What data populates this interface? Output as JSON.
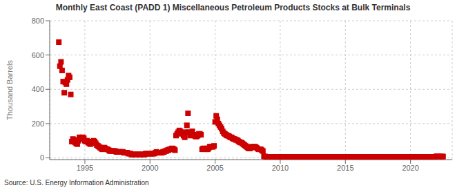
{
  "chart_data": {
    "type": "scatter",
    "title": "Monthly East Coast (PADD 1) Miscellaneous Petroleum Products Stocks at Bulk Terminals",
    "ylabel": "Thousand Barrels",
    "annotations": [
      "Source: U.S. Energy Information Administration"
    ],
    "color": "#CC0000",
    "marker": "square",
    "grid": true,
    "xlim": [
      1992.3,
      2023.2
    ],
    "ylim": [
      -10,
      800
    ],
    "xticks": [
      1995,
      2000,
      2005,
      2010,
      2015,
      2020
    ],
    "yticks": [
      0,
      200,
      400,
      600,
      800
    ],
    "x": [
      1993.0,
      1993.083,
      1993.167,
      1993.25,
      1993.333,
      1993.417,
      1993.5,
      1993.583,
      1993.667,
      1993.75,
      1993.833,
      1993.917,
      1994.0,
      1994.083,
      1994.167,
      1994.25,
      1994.333,
      1994.417,
      1994.5,
      1994.583,
      1994.667,
      1994.75,
      1994.833,
      1994.917,
      1995.0,
      1995.083,
      1995.167,
      1995.25,
      1995.333,
      1995.417,
      1995.5,
      1995.583,
      1995.667,
      1995.75,
      1995.833,
      1995.917,
      1996.0,
      1996.083,
      1996.167,
      1996.25,
      1996.333,
      1996.417,
      1996.5,
      1996.583,
      1996.667,
      1996.75,
      1996.833,
      1996.917,
      1997.0,
      1997.083,
      1997.167,
      1997.25,
      1997.333,
      1997.417,
      1997.5,
      1997.583,
      1997.667,
      1997.75,
      1997.833,
      1997.917,
      1998.0,
      1998.083,
      1998.167,
      1998.25,
      1998.333,
      1998.417,
      1998.5,
      1998.583,
      1998.667,
      1998.75,
      1998.833,
      1998.917,
      1999.0,
      1999.083,
      1999.167,
      1999.25,
      1999.333,
      1999.417,
      1999.5,
      1999.583,
      1999.667,
      1999.75,
      1999.833,
      1999.917,
      2000.0,
      2000.083,
      2000.167,
      2000.25,
      2000.333,
      2000.417,
      2000.5,
      2000.583,
      2000.667,
      2000.75,
      2000.833,
      2000.917,
      2001.0,
      2001.083,
      2001.167,
      2001.25,
      2001.333,
      2001.417,
      2001.5,
      2001.583,
      2001.667,
      2001.75,
      2001.833,
      2001.917,
      2002.0,
      2002.083,
      2002.167,
      2002.25,
      2002.333,
      2002.417,
      2002.5,
      2002.583,
      2002.667,
      2002.75,
      2002.833,
      2002.917,
      2003.0,
      2003.083,
      2003.167,
      2003.25,
      2003.333,
      2003.417,
      2003.5,
      2003.583,
      2003.667,
      2003.75,
      2003.833,
      2003.917,
      2004.0,
      2004.083,
      2004.167,
      2004.25,
      2004.333,
      2004.417,
      2004.5,
      2004.583,
      2004.667,
      2004.75,
      2004.833,
      2004.917,
      2005.0,
      2005.083,
      2005.167,
      2005.25,
      2005.333,
      2005.417,
      2005.5,
      2005.583,
      2005.667,
      2005.75,
      2005.833,
      2005.917,
      2006.0,
      2006.083,
      2006.167,
      2006.25,
      2006.333,
      2006.417,
      2006.5,
      2006.583,
      2006.667,
      2006.75,
      2006.833,
      2006.917,
      2007.0,
      2007.083,
      2007.167,
      2007.25,
      2007.333,
      2007.417,
      2007.5,
      2007.583,
      2007.667,
      2007.75,
      2007.833,
      2007.917,
      2008.0,
      2008.083,
      2008.167,
      2008.25,
      2008.333,
      2008.417,
      2008.5,
      2008.583,
      2008.667,
      2008.75,
      2008.833,
      2008.917,
      2009.0,
      2009.083,
      2009.167,
      2009.25,
      2009.333,
      2009.417,
      2009.5,
      2009.583,
      2009.667,
      2009.75,
      2009.833,
      2009.917,
      2010.0,
      2010.083,
      2010.167,
      2010.25,
      2010.333,
      2010.417,
      2010.5,
      2010.583,
      2010.667,
      2010.75,
      2010.833,
      2010.917,
      2011.0,
      2011.083,
      2011.167,
      2011.25,
      2011.333,
      2011.417,
      2011.5,
      2011.583,
      2011.667,
      2011.75,
      2011.833,
      2011.917,
      2012.0,
      2012.083,
      2012.167,
      2012.25,
      2012.333,
      2012.417,
      2012.5,
      2012.583,
      2012.667,
      2012.75,
      2012.833,
      2012.917,
      2013.0,
      2013.083,
      2013.167,
      2013.25,
      2013.333,
      2013.417,
      2013.5,
      2013.583,
      2013.667,
      2013.75,
      2013.833,
      2013.917,
      2014.0,
      2014.083,
      2014.167,
      2014.25,
      2014.333,
      2014.417,
      2014.5,
      2014.583,
      2014.667,
      2014.75,
      2014.833,
      2014.917,
      2015.0,
      2015.083,
      2015.167,
      2015.25,
      2015.333,
      2015.417,
      2015.5,
      2015.583,
      2015.667,
      2015.75,
      2015.833,
      2015.917,
      2016.0,
      2016.083,
      2016.167,
      2016.25,
      2016.333,
      2016.417,
      2016.5,
      2016.583,
      2016.667,
      2016.75,
      2016.833,
      2016.917,
      2017.0,
      2017.083,
      2017.167,
      2017.25,
      2017.333,
      2017.417,
      2017.5,
      2017.583,
      2017.667,
      2017.75,
      2017.833,
      2017.917,
      2018.0,
      2018.083,
      2018.167,
      2018.25,
      2018.333,
      2018.417,
      2018.5,
      2018.583,
      2018.667,
      2018.75,
      2018.833,
      2018.917,
      2019.0,
      2019.083,
      2019.167,
      2019.25,
      2019.333,
      2019.417,
      2019.5,
      2019.583,
      2019.667,
      2019.75,
      2019.833,
      2019.917,
      2020.0,
      2020.083,
      2020.167,
      2020.25,
      2020.333,
      2020.417,
      2020.5,
      2020.583,
      2020.667,
      2020.75,
      2020.833,
      2020.917,
      2021.0,
      2021.083,
      2021.167,
      2021.25,
      2021.333,
      2021.417,
      2021.5,
      2021.583,
      2021.667,
      2021.75,
      2021.833,
      2021.917,
      2022.0,
      2022.083,
      2022.167,
      2022.25,
      2022.333,
      2022.417,
      2022.5
    ],
    "values": [
      675,
      535,
      560,
      510,
      445,
      380,
      440,
      430,
      455,
      480,
      470,
      370,
      95,
      110,
      105,
      90,
      85,
      80,
      100,
      120,
      115,
      110,
      120,
      115,
      100,
      95,
      100,
      90,
      85,
      80,
      90,
      95,
      100,
      95,
      85,
      75,
      70,
      65,
      60,
      55,
      50,
      55,
      60,
      55,
      50,
      50,
      45,
      40,
      40,
      40,
      40,
      40,
      40,
      35,
      35,
      35,
      35,
      35,
      35,
      35,
      30,
      30,
      30,
      30,
      25,
      25,
      25,
      20,
      20,
      20,
      20,
      20,
      20,
      20,
      20,
      20,
      20,
      20,
      20,
      20,
      25,
      25,
      25,
      25,
      25,
      25,
      25,
      25,
      25,
      30,
      35,
      30,
      30,
      30,
      30,
      30,
      35,
      35,
      40,
      40,
      45,
      45,
      50,
      50,
      55,
      55,
      50,
      45,
      130,
      140,
      150,
      160,
      155,
      145,
      140,
      130,
      120,
      150,
      190,
      260,
      150,
      130,
      145,
      155,
      135,
      130,
      125,
      125,
      130,
      140,
      140,
      135,
      50,
      55,
      55,
      55,
      50,
      50,
      55,
      65,
      65,
      65,
      65,
      70,
      210,
      245,
      225,
      200,
      190,
      180,
      170,
      155,
      145,
      140,
      135,
      130,
      130,
      125,
      120,
      120,
      115,
      110,
      110,
      105,
      105,
      100,
      95,
      90,
      90,
      85,
      80,
      75,
      70,
      65,
      60,
      55,
      55,
      60,
      65,
      65,
      65,
      65,
      60,
      55,
      50,
      50,
      50,
      45,
      40,
      10,
      8,
      5,
      5,
      5,
      5,
      5,
      5,
      5,
      5,
      5,
      5,
      5,
      5,
      5,
      5,
      5,
      5,
      5,
      5,
      5,
      5,
      5,
      5,
      5,
      5,
      5,
      5,
      5,
      5,
      5,
      5,
      5,
      5,
      5,
      5,
      5,
      5,
      5,
      5,
      5,
      5,
      5,
      5,
      5,
      5,
      5,
      5,
      5,
      5,
      5,
      5,
      5,
      5,
      5,
      5,
      5,
      5,
      5,
      5,
      5,
      5,
      5,
      5,
      5,
      5,
      5,
      5,
      5,
      5,
      5,
      5,
      5,
      5,
      5,
      5,
      5,
      5,
      5,
      5,
      5,
      5,
      5,
      5,
      5,
      5,
      5,
      5,
      5,
      5,
      5,
      5,
      5,
      5,
      5,
      5,
      5,
      5,
      5,
      5,
      5,
      5,
      5,
      5,
      5,
      5,
      5,
      5,
      5,
      5,
      5,
      5,
      5,
      5,
      5,
      5,
      5,
      5,
      5,
      5,
      5,
      5,
      5,
      5,
      5,
      5,
      5,
      5,
      5,
      5,
      5,
      5,
      5,
      5,
      5,
      5,
      5,
      5,
      5,
      5,
      5,
      5,
      5,
      5,
      5,
      5,
      5,
      5,
      5,
      5,
      5,
      5,
      5,
      5,
      5,
      5,
      5,
      5,
      5,
      10,
      10,
      10,
      8,
      8,
      8,
      8
    ]
  }
}
